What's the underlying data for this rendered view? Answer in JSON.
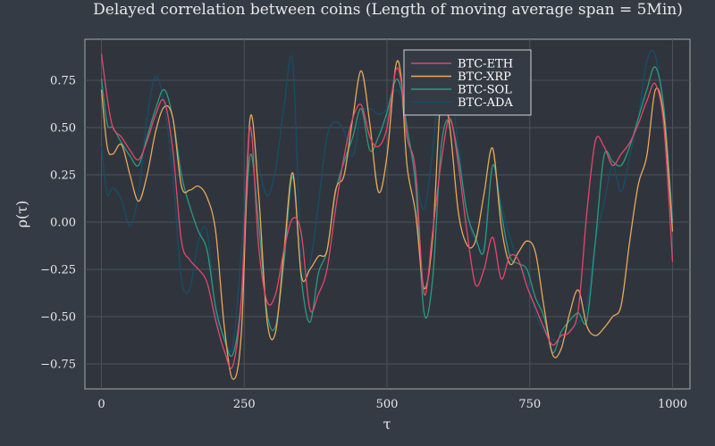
{
  "chart_data": {
    "type": "line",
    "title": "Delayed correlation between coins (Length of moving average span = 5Min)",
    "xlabel": "τ",
    "ylabel": "ρ(τ)",
    "xlim": [
      -30,
      1030
    ],
    "ylim": [
      -0.88,
      0.97
    ],
    "xticks": [
      0,
      250,
      500,
      750,
      1000
    ],
    "xtick_labels": [
      "0",
      "250",
      "500",
      "750",
      "1000"
    ],
    "yticks": [
      -0.75,
      -0.5,
      -0.25,
      0.0,
      0.25,
      0.5,
      0.75
    ],
    "ytick_labels": [
      "−0.75",
      "−0.50",
      "−0.25",
      "0.00",
      "0.25",
      "0.50",
      "0.75"
    ],
    "grid": true,
    "legend_position": "top-center",
    "series": [
      {
        "name": "BTC-ETH",
        "color": "#e8456b",
        "x": [
          0,
          10,
          20,
          35,
          50,
          65,
          80,
          95,
          110,
          125,
          140,
          155,
          170,
          185,
          200,
          215,
          230,
          245,
          260,
          275,
          290,
          305,
          320,
          335,
          350,
          365,
          380,
          395,
          410,
          425,
          440,
          455,
          470,
          485,
          500,
          515,
          525,
          535,
          550,
          565,
          580,
          595,
          610,
          625,
          640,
          655,
          670,
          685,
          700,
          715,
          730,
          745,
          760,
          775,
          790,
          805,
          820,
          835,
          850,
          865,
          880,
          895,
          910,
          925,
          940,
          955,
          970,
          985,
          1000
        ],
        "y": [
          0.89,
          0.66,
          0.5,
          0.45,
          0.38,
          0.33,
          0.43,
          0.57,
          0.64,
          0.38,
          -0.1,
          -0.2,
          -0.25,
          -0.32,
          -0.52,
          -0.68,
          -0.76,
          -0.4,
          0.5,
          -0.12,
          -0.42,
          -0.38,
          -0.14,
          0.02,
          -0.06,
          -0.46,
          -0.38,
          -0.25,
          0.07,
          0.35,
          0.55,
          0.62,
          0.45,
          0.4,
          0.5,
          0.8,
          0.74,
          0.45,
          0.27,
          -0.38,
          -0.05,
          0.32,
          0.55,
          0.3,
          -0.05,
          -0.33,
          -0.25,
          -0.08,
          -0.3,
          -0.18,
          -0.2,
          -0.34,
          -0.45,
          -0.56,
          -0.65,
          -0.6,
          -0.58,
          -0.46,
          0.05,
          0.43,
          0.4,
          0.3,
          0.36,
          0.42,
          0.52,
          0.64,
          0.73,
          0.5,
          -0.21
        ]
      },
      {
        "name": "BTC-XRP",
        "color": "#e8a85a",
        "x": [
          0,
          10,
          20,
          35,
          50,
          65,
          80,
          95,
          110,
          125,
          140,
          155,
          170,
          185,
          200,
          215,
          230,
          245,
          260,
          275,
          290,
          305,
          320,
          335,
          350,
          365,
          380,
          395,
          410,
          425,
          440,
          455,
          470,
          485,
          500,
          515,
          525,
          535,
          550,
          565,
          580,
          595,
          610,
          625,
          640,
          655,
          670,
          685,
          700,
          715,
          730,
          745,
          760,
          775,
          790,
          805,
          820,
          835,
          850,
          865,
          880,
          895,
          910,
          925,
          940,
          955,
          970,
          985,
          1000
        ],
        "y": [
          0.7,
          0.4,
          0.36,
          0.41,
          0.25,
          0.11,
          0.25,
          0.48,
          0.61,
          0.55,
          0.19,
          0.17,
          0.19,
          0.13,
          -0.05,
          -0.55,
          -0.83,
          -0.58,
          0.54,
          0.16,
          -0.52,
          -0.58,
          -0.14,
          0.26,
          -0.28,
          -0.25,
          -0.18,
          -0.15,
          0.17,
          0.25,
          0.55,
          0.8,
          0.52,
          0.16,
          0.35,
          0.82,
          0.76,
          0.3,
          0.05,
          -0.35,
          -0.08,
          0.68,
          0.5,
          0.05,
          -0.12,
          -0.1,
          0.15,
          0.39,
          -0.02,
          -0.22,
          -0.16,
          -0.1,
          -0.16,
          -0.45,
          -0.7,
          -0.67,
          -0.48,
          -0.36,
          -0.55,
          -0.6,
          -0.56,
          -0.5,
          -0.44,
          -0.1,
          0.2,
          0.35,
          0.7,
          0.55,
          -0.05
        ]
      },
      {
        "name": "BTC-SOL",
        "color": "#2a9a80",
        "x": [
          0,
          10,
          20,
          35,
          50,
          65,
          80,
          95,
          110,
          125,
          140,
          155,
          170,
          185,
          200,
          215,
          230,
          245,
          260,
          275,
          290,
          305,
          320,
          335,
          350,
          365,
          380,
          395,
          410,
          425,
          440,
          455,
          470,
          485,
          500,
          515,
          525,
          535,
          550,
          565,
          580,
          595,
          610,
          625,
          640,
          655,
          670,
          685,
          700,
          715,
          730,
          745,
          760,
          775,
          790,
          805,
          820,
          835,
          850,
          865,
          880,
          895,
          910,
          925,
          940,
          955,
          970,
          985,
          1000
        ],
        "y": [
          0.76,
          0.52,
          0.5,
          0.42,
          0.35,
          0.3,
          0.45,
          0.6,
          0.7,
          0.55,
          0.25,
          0.08,
          -0.05,
          -0.15,
          -0.45,
          -0.62,
          -0.7,
          -0.4,
          0.35,
          0.0,
          -0.48,
          -0.55,
          -0.2,
          0.24,
          -0.3,
          -0.53,
          -0.27,
          -0.15,
          0.16,
          0.32,
          0.45,
          0.6,
          0.38,
          0.45,
          0.58,
          0.75,
          0.7,
          0.5,
          0.2,
          -0.48,
          -0.3,
          0.4,
          0.54,
          0.35,
          0.05,
          -0.08,
          -0.15,
          0.3,
          0.05,
          -0.18,
          -0.22,
          -0.25,
          -0.4,
          -0.5,
          -0.69,
          -0.58,
          -0.52,
          -0.48,
          -0.52,
          -0.1,
          0.35,
          0.32,
          0.3,
          0.4,
          0.55,
          0.7,
          0.82,
          0.6,
          0.0
        ]
      },
      {
        "name": "BTC-ADA",
        "color": "#144f68",
        "x": [
          0,
          10,
          20,
          35,
          50,
          65,
          80,
          95,
          110,
          125,
          140,
          155,
          170,
          185,
          200,
          215,
          230,
          245,
          260,
          275,
          290,
          305,
          320,
          335,
          350,
          365,
          380,
          395,
          410,
          425,
          440,
          455,
          470,
          485,
          500,
          515,
          525,
          535,
          550,
          565,
          580,
          595,
          610,
          625,
          640,
          655,
          670,
          685,
          700,
          715,
          730,
          745,
          760,
          775,
          790,
          805,
          820,
          835,
          850,
          865,
          880,
          895,
          910,
          925,
          940,
          955,
          970,
          985,
          1000
        ],
        "y": [
          0.4,
          0.15,
          0.18,
          0.12,
          -0.02,
          0.15,
          0.55,
          0.77,
          0.62,
          0.25,
          -0.3,
          -0.35,
          -0.1,
          -0.05,
          -0.48,
          -0.6,
          -0.66,
          -0.15,
          0.45,
          0.3,
          0.14,
          0.28,
          0.62,
          0.84,
          -0.2,
          -0.22,
          0.1,
          0.45,
          0.53,
          0.48,
          0.35,
          0.57,
          0.6,
          0.57,
          0.6,
          0.7,
          0.65,
          0.45,
          0.25,
          0.07,
          0.38,
          0.83,
          0.73,
          0.4,
          0.05,
          -0.1,
          -0.12,
          0.3,
          0.1,
          -0.08,
          -0.2,
          -0.3,
          -0.48,
          -0.58,
          -0.62,
          -0.63,
          -0.57,
          -0.53,
          -0.45,
          -0.1,
          0.1,
          0.3,
          0.16,
          0.35,
          0.55,
          0.85,
          0.88,
          0.55,
          0.05
        ]
      }
    ]
  }
}
